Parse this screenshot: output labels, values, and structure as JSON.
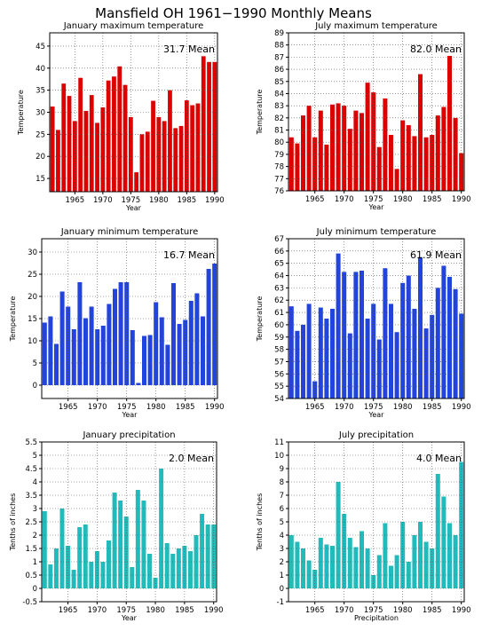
{
  "main_title": "Mansfield OH   1961−1990 Monthly Means",
  "chart_data": [
    {
      "type": "bar",
      "title": "January maximum temperature",
      "ylabel": "Temperature",
      "xlabel": "Year",
      "mean_label": "31.7 Mean",
      "color": "#dd0000",
      "ylim": [
        12,
        48
      ],
      "yticks": [
        15,
        20,
        25,
        30,
        35,
        40,
        45
      ],
      "xticks": [
        1965,
        1970,
        1975,
        1980,
        1985,
        1990
      ],
      "x": [
        1961,
        1962,
        1963,
        1964,
        1965,
        1966,
        1967,
        1968,
        1969,
        1970,
        1971,
        1972,
        1973,
        1974,
        1975,
        1976,
        1977,
        1978,
        1979,
        1980,
        1981,
        1982,
        1983,
        1984,
        1985,
        1986,
        1987,
        1988,
        1989,
        1990
      ],
      "values": [
        31.3,
        26.0,
        36.5,
        33.7,
        28.0,
        37.8,
        30.3,
        33.9,
        27.6,
        31.1,
        37.2,
        38.1,
        40.4,
        36.2,
        28.9,
        16.4,
        25.0,
        25.6,
        32.6,
        28.9,
        28.0,
        35.0,
        26.4,
        26.9,
        32.7,
        31.6,
        32.0,
        42.7,
        41.4,
        41.4
      ]
    },
    {
      "type": "bar",
      "title": "July maximum temperature",
      "ylabel": "Temperature",
      "xlabel": "Year",
      "mean_label": "82.0 Mean",
      "color": "#dd0000",
      "ylim": [
        76,
        89
      ],
      "yticks": [
        76,
        77,
        78,
        79,
        80,
        81,
        82,
        83,
        84,
        85,
        86,
        87,
        88,
        89
      ],
      "xticks": [
        1965,
        1970,
        1975,
        1980,
        1985,
        1990
      ],
      "x": [
        1961,
        1962,
        1963,
        1964,
        1965,
        1966,
        1967,
        1968,
        1969,
        1970,
        1971,
        1972,
        1973,
        1974,
        1975,
        1976,
        1977,
        1978,
        1979,
        1980,
        1981,
        1982,
        1983,
        1984,
        1985,
        1986,
        1987,
        1988,
        1989,
        1990
      ],
      "values": [
        80.4,
        79.9,
        82.2,
        83.0,
        80.4,
        82.6,
        79.8,
        83.1,
        83.2,
        83.0,
        81.1,
        82.6,
        82.4,
        84.9,
        84.1,
        79.6,
        83.6,
        80.6,
        77.8,
        81.8,
        81.4,
        80.5,
        85.6,
        80.4,
        80.6,
        82.2,
        82.9,
        87.1,
        82.0,
        79.1
      ]
    },
    {
      "type": "bar",
      "title": "January minimum temperature",
      "ylabel": "Temperature",
      "xlabel": "Year",
      "mean_label": "16.7 Mean",
      "color": "#2244dd",
      "ylim": [
        -3,
        33
      ],
      "yticks": [
        0,
        5,
        10,
        15,
        20,
        25,
        30
      ],
      "xticks": [
        1965,
        1970,
        1975,
        1980,
        1985,
        1990
      ],
      "x": [
        1961,
        1962,
        1963,
        1964,
        1965,
        1966,
        1967,
        1968,
        1969,
        1970,
        1971,
        1972,
        1973,
        1974,
        1975,
        1976,
        1977,
        1978,
        1979,
        1980,
        1981,
        1982,
        1983,
        1984,
        1985,
        1986,
        1987,
        1988,
        1989,
        1990
      ],
      "values": [
        14.1,
        15.5,
        9.3,
        21.1,
        17.7,
        12.6,
        23.2,
        15.1,
        17.7,
        12.6,
        13.4,
        18.3,
        21.7,
        23.2,
        23.2,
        12.4,
        0.5,
        11.1,
        11.3,
        18.7,
        15.3,
        9.1,
        23.0,
        13.8,
        14.7,
        19.0,
        20.7,
        15.5,
        26.2,
        27.4
      ]
    },
    {
      "type": "bar",
      "title": "July minimum temperature",
      "ylabel": "Temperature",
      "xlabel": "Year",
      "mean_label": "61.9 Mean",
      "color": "#2244dd",
      "ylim": [
        54,
        67
      ],
      "yticks": [
        54,
        55,
        56,
        57,
        58,
        59,
        60,
        61,
        62,
        63,
        64,
        65,
        66,
        67
      ],
      "xticks": [
        1965,
        1970,
        1975,
        1980,
        1985,
        1990
      ],
      "x": [
        1961,
        1962,
        1963,
        1964,
        1965,
        1966,
        1967,
        1968,
        1969,
        1970,
        1971,
        1972,
        1973,
        1974,
        1975,
        1976,
        1977,
        1978,
        1979,
        1980,
        1981,
        1982,
        1983,
        1984,
        1985,
        1986,
        1987,
        1988,
        1989,
        1990
      ],
      "values": [
        61.5,
        59.5,
        60.0,
        61.7,
        55.4,
        61.4,
        60.5,
        61.3,
        65.8,
        64.3,
        59.3,
        64.3,
        64.4,
        60.5,
        61.7,
        58.8,
        64.6,
        61.7,
        59.4,
        63.4,
        64.0,
        61.3,
        65.5,
        59.7,
        60.8,
        63.0,
        64.8,
        63.9,
        62.9,
        60.9
      ]
    },
    {
      "type": "bar",
      "title": "January precipitation",
      "ylabel": "Tenths of inches",
      "xlabel": "Year",
      "mean_label": "2.0 Mean",
      "color": "#22bbbb",
      "ylim": [
        -0.5,
        5.5
      ],
      "yticks": [
        -0.5,
        0,
        0.5,
        1,
        1.5,
        2,
        2.5,
        3,
        3.5,
        4,
        4.5,
        5,
        5.5
      ],
      "xticks": [
        1965,
        1970,
        1975,
        1980,
        1985,
        1990
      ],
      "x": [
        1961,
        1962,
        1963,
        1964,
        1965,
        1966,
        1967,
        1968,
        1969,
        1970,
        1971,
        1972,
        1973,
        1974,
        1975,
        1976,
        1977,
        1978,
        1979,
        1980,
        1981,
        1982,
        1983,
        1984,
        1985,
        1986,
        1987,
        1988,
        1989,
        1990
      ],
      "values": [
        2.9,
        0.9,
        1.5,
        3.0,
        1.6,
        0.7,
        2.3,
        2.4,
        1.0,
        1.4,
        1.0,
        1.8,
        3.6,
        3.3,
        2.7,
        0.8,
        3.7,
        3.3,
        1.3,
        0.4,
        4.5,
        1.7,
        1.3,
        1.5,
        1.6,
        1.4,
        2.0,
        2.8,
        2.4,
        2.4
      ]
    },
    {
      "type": "bar",
      "title": "July precipitation",
      "ylabel": "Tenths of inches",
      "xlabel": "Precipitation",
      "mean_label": "4.0 Mean",
      "color": "#22bbbb",
      "ylim": [
        -1,
        11
      ],
      "yticks": [
        -1,
        0,
        1,
        2,
        3,
        4,
        5,
        6,
        7,
        8,
        9,
        10,
        11
      ],
      "xticks": [
        1965,
        1970,
        1975,
        1980,
        1985,
        1990
      ],
      "x": [
        1961,
        1962,
        1963,
        1964,
        1965,
        1966,
        1967,
        1968,
        1969,
        1970,
        1971,
        1972,
        1973,
        1974,
        1975,
        1976,
        1977,
        1978,
        1979,
        1980,
        1981,
        1982,
        1983,
        1984,
        1985,
        1986,
        1987,
        1988,
        1989,
        1990
      ],
      "values": [
        4.0,
        3.5,
        3.0,
        2.1,
        1.4,
        3.8,
        3.3,
        3.2,
        8.0,
        5.6,
        3.8,
        3.1,
        4.3,
        3.0,
        1.0,
        2.5,
        4.9,
        1.7,
        2.5,
        5.0,
        2.0,
        4.0,
        5.0,
        3.5,
        3.0,
        8.6,
        6.9,
        4.9,
        4.0,
        9.5
      ]
    }
  ]
}
